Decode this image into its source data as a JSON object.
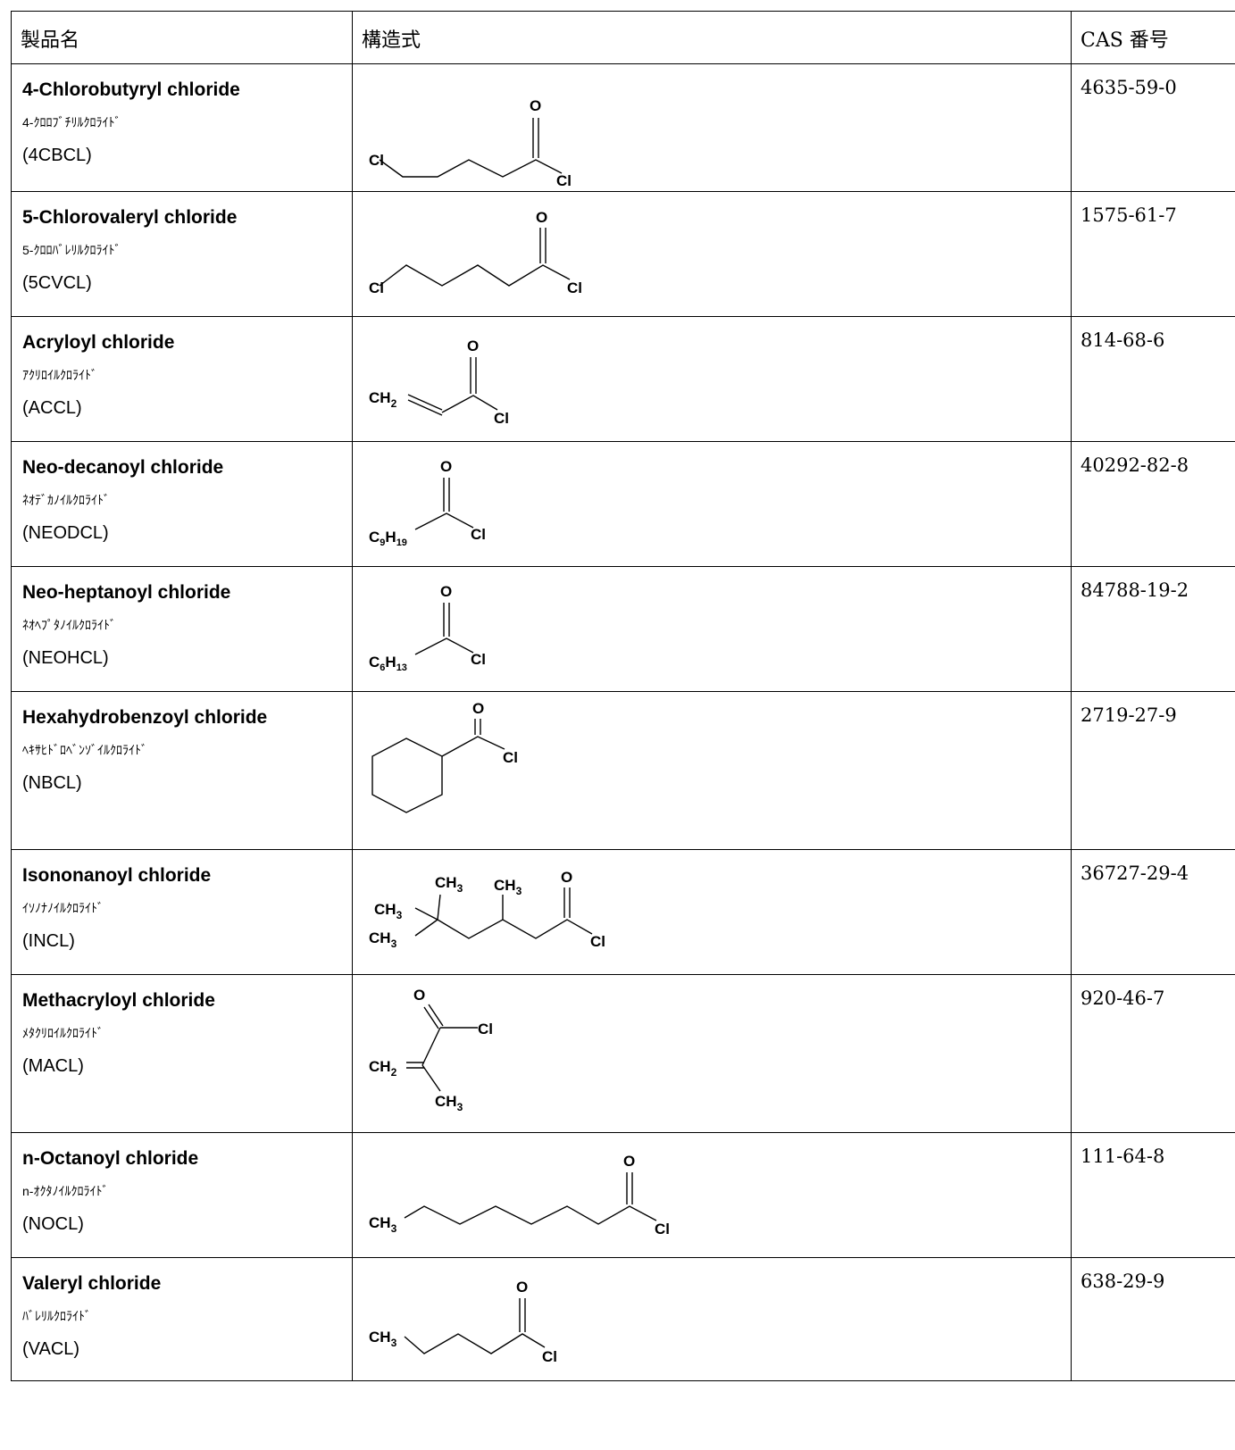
{
  "header": {
    "name": "製品名",
    "structure": "構造式",
    "cas": "CAS 番号"
  },
  "rows": [
    {
      "name_en": "4-Chlorobutyryl chloride",
      "name_jp": "4-ｸﾛﾛﾌﾞﾁﾘﾙｸﾛﾗｲﾄﾞ",
      "abbr": "(4CBCL)",
      "cas": "4635-59-0"
    },
    {
      "name_en": "5-Chlorovaleryl chloride",
      "name_jp": "5-ｸﾛﾛﾊﾞﾚﾘﾙｸﾛﾗｲﾄﾞ",
      "abbr": "(5CVCL)",
      "cas": "1575-61-7"
    },
    {
      "name_en": "Acryloyl chloride",
      "name_jp": "ｱｸﾘﾛｲﾙｸﾛﾗｲﾄﾞ",
      "abbr": "(ACCL)",
      "cas": "814-68-6"
    },
    {
      "name_en": "Neo-decanoyl chloride",
      "name_jp": "ﾈｵﾃﾞｶﾉｲﾙｸﾛﾗｲﾄﾞ",
      "abbr": "(NEODCL)",
      "cas": "40292-82-8"
    },
    {
      "name_en": "Neo-heptanoyl chloride",
      "name_jp": "ﾈｵﾍﾌﾟﾀﾉｲﾙｸﾛﾗｲﾄﾞ",
      "abbr": "(NEOHCL)",
      "cas": "84788-19-2"
    },
    {
      "name_en": "Hexahydrobenzoyl chloride",
      "name_jp": "ﾍｷｻﾋﾄﾞﾛﾍﾞﾝｿﾞｲﾙｸﾛﾗｲﾄﾞ",
      "abbr": "(NBCL)",
      "cas": "2719-27-9"
    },
    {
      "name_en": "Isononanoyl chloride",
      "name_jp": "ｲｿﾉﾅﾉｲﾙｸﾛﾗｲﾄﾞ",
      "abbr": "(INCL)",
      "cas": "36727-29-4"
    },
    {
      "name_en": "Methacryloyl chloride",
      "name_jp": "ﾒﾀｸﾘﾛｲﾙｸﾛﾗｲﾄﾞ",
      "abbr": "(MACL)",
      "cas": "920-46-7"
    },
    {
      "name_en": "n-Octanoyl chloride",
      "name_jp": "n-ｵｸﾀﾉｲﾙｸﾛﾗｲﾄﾞ",
      "abbr": "(NOCL)",
      "cas": "111-64-8"
    },
    {
      "name_en": "Valeryl chloride",
      "name_jp": "ﾊﾞﾚﾘﾙｸﾛﾗｲﾄﾞ",
      "abbr": "(VACL)",
      "cas": "638-29-9"
    }
  ],
  "structures": {
    "o": "O",
    "cl": "Cl",
    "ch": "CH",
    "h": "H",
    "c": "C",
    "n2": "2",
    "n3": "3",
    "n9": "9",
    "n19": "19",
    "n6": "6",
    "n13": "13"
  }
}
